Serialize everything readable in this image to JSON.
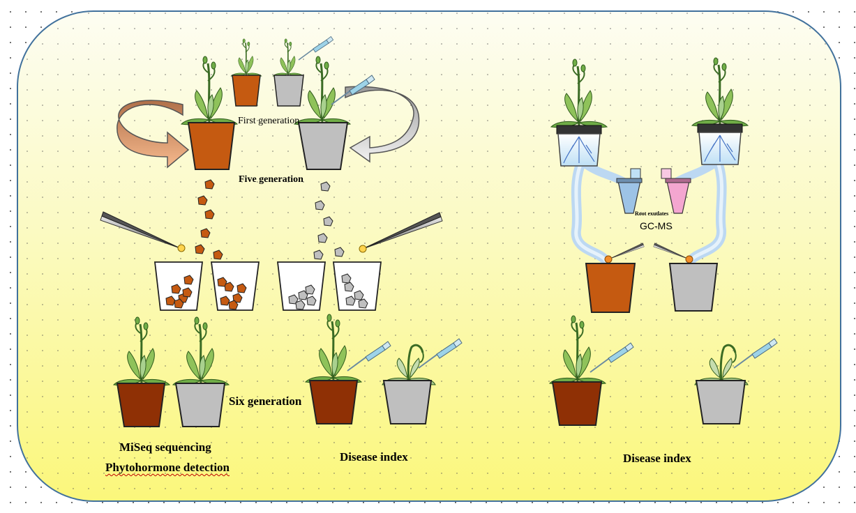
{
  "labels": {
    "first_generation": "First generation",
    "five_generation": "Five generation",
    "six_generation": "Six generation",
    "miseq": "MiSeq sequencing",
    "phytohormone": "Phytohormone detection",
    "disease_index_left": "Disease index",
    "disease_index_right": "Disease index",
    "root_exudates": "Root exudates",
    "gcms": "GC-MS"
  },
  "colors": {
    "soil_orange": "#c55a11",
    "soil_dark": "#8f3005",
    "pot_gray": "#bfbfbf",
    "leaf_green": "#70ad47",
    "panel_border": "#41719c",
    "arrow_orange": "#f4b183",
    "arrow_gray": "#d9d9d9",
    "exudate_blue": "#9dc3e6",
    "exudate_pink": "#f4a6d0"
  }
}
